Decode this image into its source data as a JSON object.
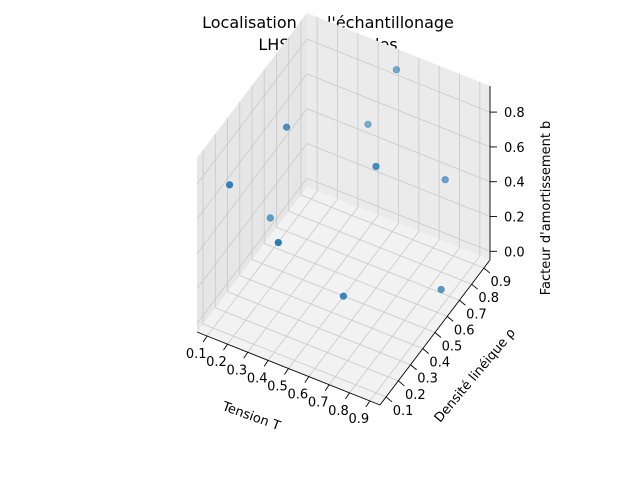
{
  "chart_data": {
    "type": "scatter",
    "title_line1": "Localisation de l'échantillonage",
    "title_line2": "LHS à 3 variables",
    "xlabel": "Tension T",
    "ylabel": "Densité linéique ρ",
    "zlabel": "Facteur d'amortissement b",
    "x_ticks": [
      "0.1",
      "0.2",
      "0.3",
      "0.4",
      "0.5",
      "0.6",
      "0.7",
      "0.8",
      "0.9"
    ],
    "y_ticks": [
      "0.1",
      "0.2",
      "0.3",
      "0.4",
      "0.5",
      "0.6",
      "0.7",
      "0.8",
      "0.9"
    ],
    "z_ticks": [
      "0.0",
      "0.2",
      "0.4",
      "0.6",
      "0.8"
    ],
    "xlim": [
      0.05,
      0.95
    ],
    "ylim": [
      0.05,
      0.95
    ],
    "zlim": [
      -0.05,
      0.95
    ],
    "grid": true,
    "marker_color": "#1f77b4",
    "points": [
      {
        "x": 0.55,
        "y": 0.85,
        "z": 0.95
      },
      {
        "x": 0.35,
        "y": 0.95,
        "z": 0.45
      },
      {
        "x": 0.25,
        "y": 0.45,
        "z": 0.85
      },
      {
        "x": 0.85,
        "y": 0.75,
        "z": 0.55
      },
      {
        "x": 0.15,
        "y": 0.15,
        "z": 0.75
      },
      {
        "x": 0.75,
        "y": 0.35,
        "z": 0.95
      },
      {
        "x": 0.45,
        "y": 0.05,
        "z": 0.65
      },
      {
        "x": 0.95,
        "y": 0.55,
        "z": 0.15
      },
      {
        "x": 0.65,
        "y": 0.25,
        "z": 0.25
      },
      {
        "x": 0.05,
        "y": 0.65,
        "z": 0.05
      }
    ]
  }
}
